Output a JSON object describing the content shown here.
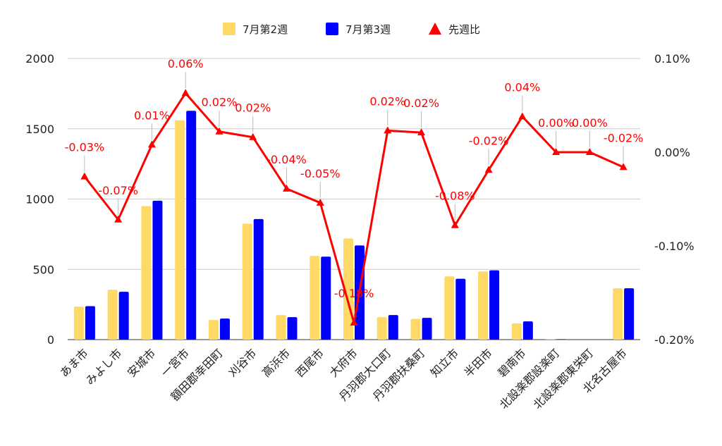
{
  "chart_data": {
    "type": "bar",
    "categories": [
      "あま市",
      "みよし市",
      "安城市",
      "一宮市",
      "額田郡幸田町",
      "刈谷市",
      "高浜市",
      "西尾市",
      "大府市",
      "丹羽郡大口町",
      "丹羽郡扶桑町",
      "知立市",
      "半田市",
      "碧南市",
      "北設楽郡設楽町",
      "北設楽郡東栄町",
      "北名古屋市"
    ],
    "series": [
      {
        "name": "7月第2週",
        "kind": "bar",
        "axis": "left",
        "color": "#ffd966",
        "values": [
          235,
          355,
          950,
          1560,
          140,
          825,
          175,
          595,
          720,
          160,
          148,
          450,
          485,
          115,
          5,
          0,
          365
        ]
      },
      {
        "name": "7月第3週",
        "kind": "bar",
        "axis": "left",
        "color": "#0000ff",
        "values": [
          238,
          340,
          988,
          1628,
          150,
          858,
          160,
          590,
          670,
          175,
          155,
          433,
          493,
          130,
          3,
          0,
          365
        ]
      },
      {
        "name": "先週比",
        "kind": "line",
        "axis": "right",
        "color": "#ff0000",
        "values": [
          -0.026,
          -0.072,
          0.008,
          0.063,
          0.022,
          0.016,
          -0.039,
          -0.054,
          -0.182,
          0.023,
          0.021,
          -0.078,
          -0.019,
          0.038,
          0.0,
          0.0,
          -0.016
        ],
        "labels": [
          "-0.03%",
          "-0.07%",
          "0.01%",
          "0.06%",
          "0.02%",
          "0.02%",
          "-0.04%",
          "-0.05%",
          "-0.18%",
          "0.02%",
          "0.02%",
          "-0.08%",
          "-0.02%",
          "0.04%",
          "0.00%",
          "0.00%",
          "-0.02%"
        ]
      }
    ],
    "left_axis": {
      "ylim": [
        0,
        2000
      ],
      "ticks": [
        0,
        500,
        1000,
        1500,
        2000
      ],
      "tick_labels": [
        "0",
        "500",
        "1000",
        "1500",
        "2000"
      ]
    },
    "right_axis": {
      "ylim": [
        -0.2,
        0.1
      ],
      "ticks": [
        -0.2,
        -0.1,
        0.0,
        0.1
      ],
      "tick_labels": [
        "-0.20%",
        "-0.10%",
        "0.00%",
        "0.10%"
      ]
    },
    "title": "",
    "xlabel": "",
    "ylabel": "",
    "grid": true,
    "legend_position": "top-center"
  }
}
